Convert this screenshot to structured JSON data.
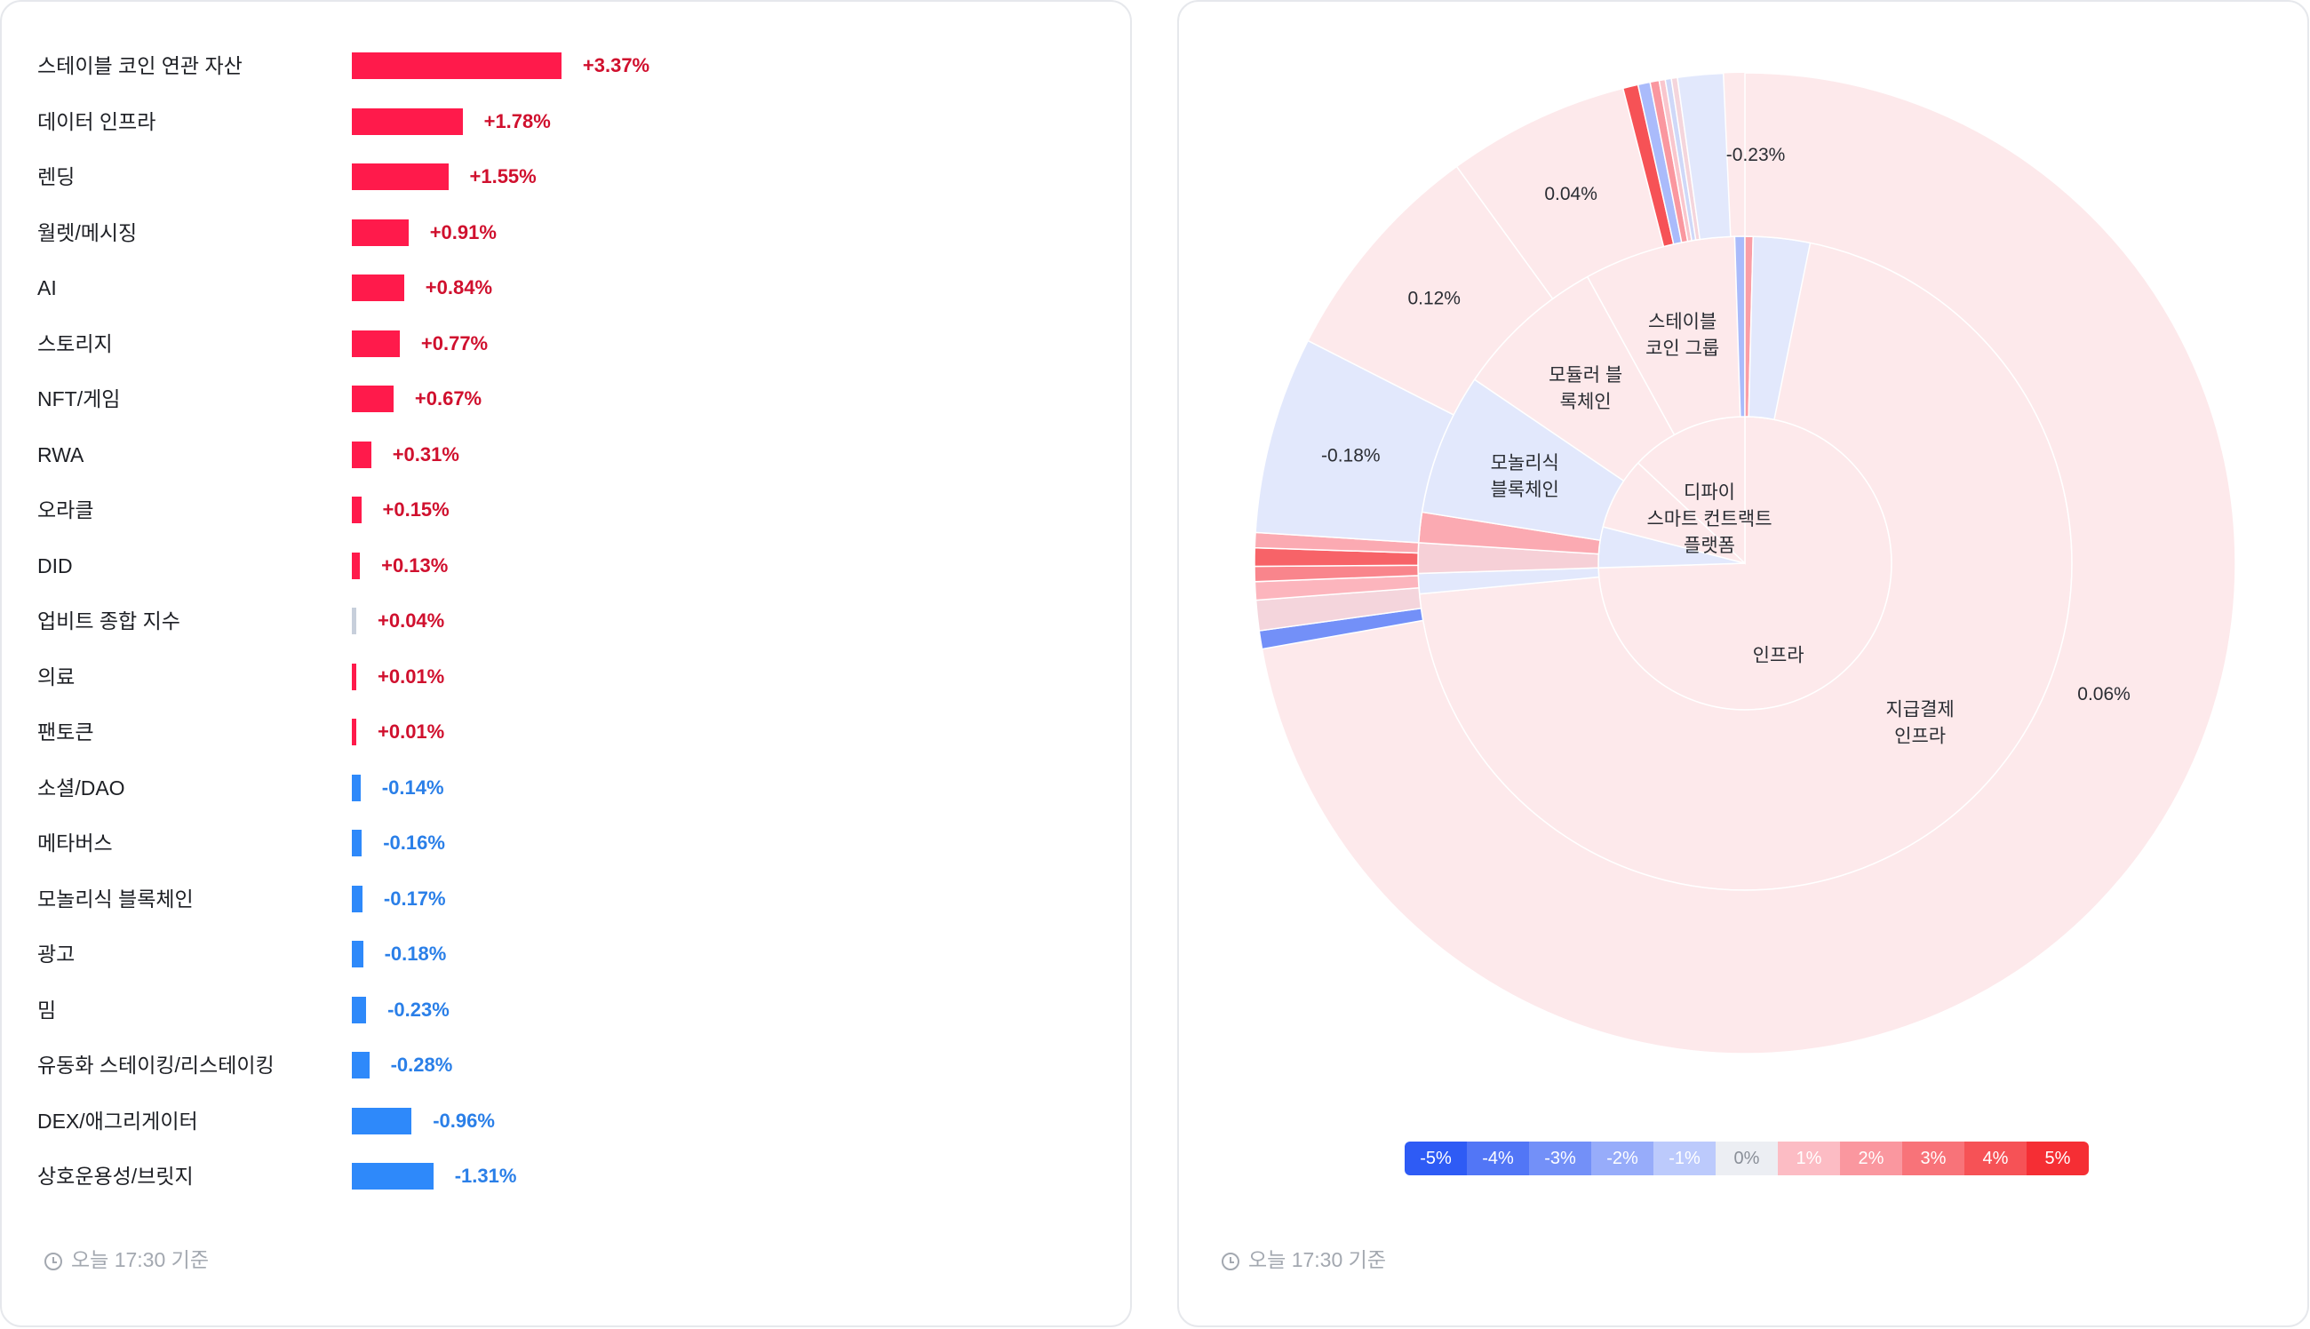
{
  "timestamp": "오늘 17:30 기준",
  "colors": {
    "up": "#ff1a4b",
    "down": "#2e89fa",
    "flat": "#c7cfdb",
    "up_text": "#d0102e",
    "down_text": "#2a7fe8"
  },
  "chart_data": [
    {
      "type": "bar",
      "orientation": "horizontal",
      "categories": [
        "스테이블 코인 연관 자산",
        "데이터 인프라",
        "렌딩",
        "월렛/메시징",
        "AI",
        "스토리지",
        "NFT/게임",
        "RWA",
        "오라클",
        "DID",
        "업비트 종합 지수",
        "의료",
        "팬토큰",
        "소셜/DAO",
        "메타버스",
        "모놀리식 블록체인",
        "광고",
        "밈",
        "유동화 스테이킹/리스테이킹",
        "DEX/애그리게이터",
        "상호운용성/브릿지"
      ],
      "values": [
        3.37,
        1.78,
        1.55,
        0.91,
        0.84,
        0.77,
        0.67,
        0.31,
        0.15,
        0.13,
        0.04,
        0.01,
        0.01,
        -0.14,
        -0.16,
        -0.17,
        -0.18,
        -0.23,
        -0.28,
        -0.96,
        -1.31
      ],
      "value_labels": [
        "+3.37%",
        "+1.78%",
        "+1.55%",
        "+0.91%",
        "+0.84%",
        "+0.77%",
        "+0.67%",
        "+0.31%",
        "+0.15%",
        "+0.13%",
        "+0.04%",
        "+0.01%",
        "+0.01%",
        "-0.14%",
        "-0.16%",
        "-0.17%",
        "-0.18%",
        "-0.23%",
        "-0.28%",
        "-0.96%",
        "-1.31%"
      ]
    },
    {
      "type": "sunburst",
      "center": {
        "label": [
          "디파이",
          "스마트 컨트랙트",
          "플랫폼"
        ]
      },
      "rings": [
        {
          "level": 1,
          "segments": [
            {
              "label": [
                "인프라"
              ],
              "share": 0.745,
              "change": 0.06
            },
            {
              "label": [],
              "share": 0.045,
              "change": -0.23
            },
            {
              "label": [],
              "share": 0.08,
              "change": 0.3
            },
            {
              "label": [],
              "share": 0.13,
              "change": 0.15
            }
          ]
        },
        {
          "level": 2,
          "segments": [
            {
              "label": [
                "지급결제",
                "인프라"
              ],
              "share": 0.735,
              "change": 0.06
            },
            {
              "label": [],
              "share": 0.01,
              "change": -0.4
            },
            {
              "label": [],
              "share": 0.015,
              "change": 0.6
            },
            {
              "label": [],
              "share": 0.015,
              "change": 1.5
            },
            {
              "label": [
                "모놀리식",
                "블록체인"
              ],
              "share": 0.07,
              "change": -0.18
            },
            {
              "label": [
                "모듈러 블",
                "록체인"
              ],
              "share": 0.075,
              "change": 0.12
            },
            {
              "label": [
                "스테이블",
                "코인 그룹"
              ],
              "share": 0.075,
              "change": 0.04
            },
            {
              "label": [],
              "share": 0.005,
              "change": -1.5
            },
            {
              "label": [],
              "share": 0.004,
              "change": 1.8
            },
            {
              "label": [],
              "share": 0.028,
              "change": -0.23
            }
          ]
        },
        {
          "level": 3,
          "segments": [
            {
              "label": [],
              "share": 0.722,
              "change": 0.06
            },
            {
              "label": [],
              "share": 0.006,
              "change": -3.0
            },
            {
              "label": [],
              "share": 0.01,
              "change": 0.5
            },
            {
              "label": [],
              "share": 0.006,
              "change": 1.2
            },
            {
              "label": [],
              "share": 0.005,
              "change": 2.5
            },
            {
              "label": [],
              "share": 0.006,
              "change": 3.5
            },
            {
              "label": [],
              "share": 0.005,
              "change": 1.5
            },
            {
              "label": [
                "-0.18%"
              ],
              "share": 0.065,
              "change": -0.18
            },
            {
              "label": [
                "0.12%"
              ],
              "share": 0.075,
              "change": 0.12
            },
            {
              "label": [
                "0.04%"
              ],
              "share": 0.06,
              "change": 0.04
            },
            {
              "label": [],
              "share": 0.005,
              "change": 4.0
            },
            {
              "label": [],
              "share": 0.004,
              "change": -1.5
            },
            {
              "label": [],
              "share": 0.003,
              "change": 2.0
            },
            {
              "label": [],
              "share": 0.002,
              "change": 0.8
            },
            {
              "label": [],
              "share": 0.002,
              "change": -0.6
            },
            {
              "label": [],
              "share": 0.002,
              "change": 0.5
            },
            {
              "label": [],
              "share": 0.015,
              "change": -0.23
            }
          ]
        }
      ],
      "extra_labels": [
        "0.06%",
        "-0.23%"
      ],
      "color_scale": {
        "labels": [
          "-5%",
          "-4%",
          "-3%",
          "-2%",
          "-1%",
          "0%",
          "1%",
          "2%",
          "3%",
          "4%",
          "5%"
        ],
        "values": [
          -5,
          -4,
          -3,
          -2,
          -1,
          0,
          1,
          2,
          3,
          4,
          5
        ],
        "colors": [
          "#2e5bf5",
          "#5276f6",
          "#7390f8",
          "#97acfa",
          "#bccafc",
          "#eceef3",
          "#fcbcc4",
          "#fa979f",
          "#f87379",
          "#f65256",
          "#f52e34"
        ]
      }
    }
  ]
}
